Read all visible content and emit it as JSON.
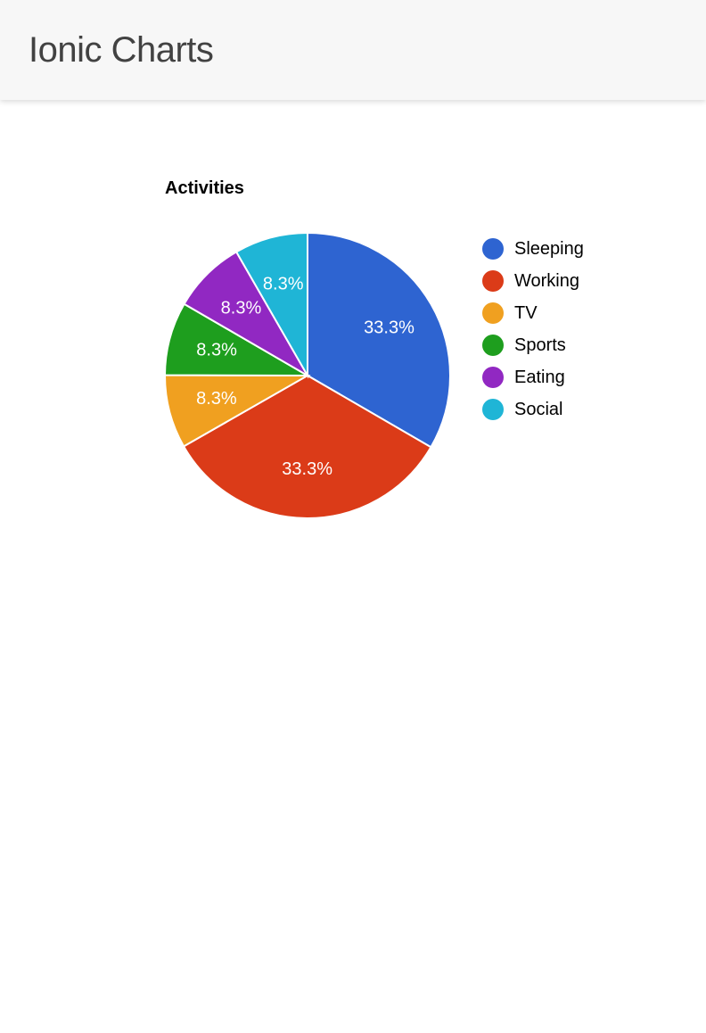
{
  "header": {
    "title": "Ionic Charts",
    "background_color": "#f7f7f7",
    "title_color": "#424242",
    "title_fontsize": 40
  },
  "chart": {
    "type": "pie",
    "title": "Activities",
    "title_fontsize": 20,
    "title_fontweight": 700,
    "background_color": "#ffffff",
    "radius": 160,
    "stroke_color": "#ffffff",
    "stroke_width": 2,
    "label_color": "#ffffff",
    "label_fontsize": 20,
    "label_radius_factor": 0.66,
    "legend_position": "right",
    "legend_dot_radius": 12,
    "legend_fontsize": 20,
    "slices": [
      {
        "label": "Sleeping",
        "value": 33.3,
        "display": "33.3%",
        "color": "#2e64d1"
      },
      {
        "label": "Working",
        "value": 33.3,
        "display": "33.3%",
        "color": "#db3b18"
      },
      {
        "label": "TV",
        "value": 8.3,
        "display": "8.3%",
        "color": "#f0a020"
      },
      {
        "label": "Sports",
        "value": 8.3,
        "display": "8.3%",
        "color": "#1e9e1e"
      },
      {
        "label": "Eating",
        "value": 8.3,
        "display": "8.3%",
        "color": "#9128c2"
      },
      {
        "label": "Social",
        "value": 8.3,
        "display": "8.3%",
        "color": "#1fb5d6"
      }
    ]
  }
}
